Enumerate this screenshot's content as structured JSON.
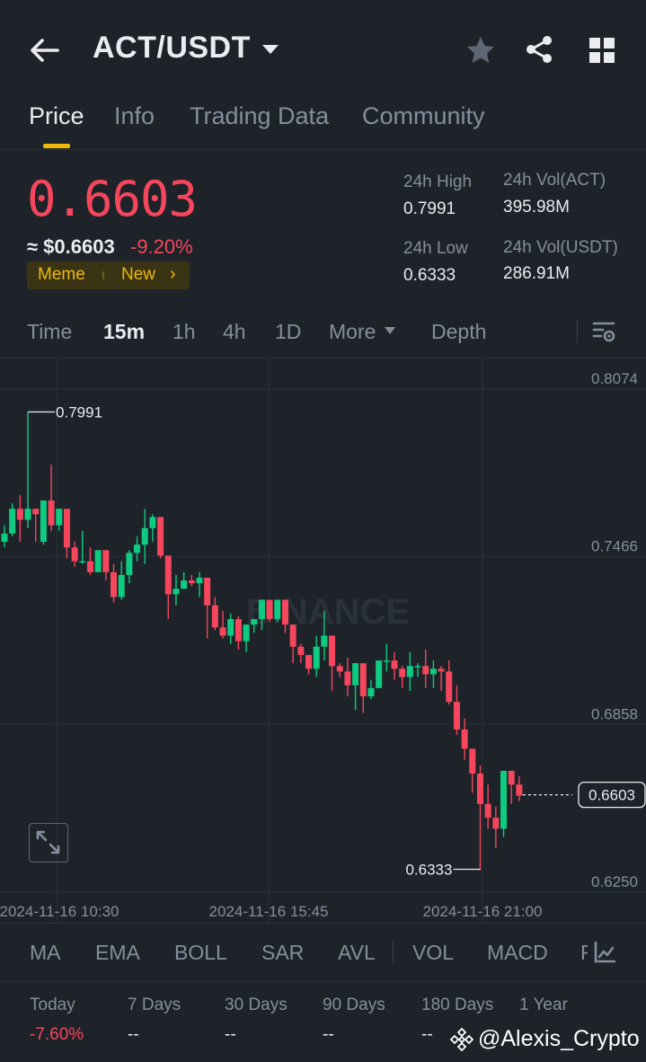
{
  "header": {
    "pair": "ACT/USDT"
  },
  "tabs": [
    {
      "label": "Price"
    },
    {
      "label": "Info"
    },
    {
      "label": "Trading Data"
    },
    {
      "label": "Community"
    }
  ],
  "price": {
    "last": "0.6603",
    "approx": "≈ $0.6603",
    "change": "-9.20%",
    "tags": [
      "Meme",
      "New"
    ]
  },
  "stats": {
    "high_label": "24h High",
    "high_value": "0.7991",
    "low_label": "24h Low",
    "low_value": "0.6333",
    "vol_base_label": "24h Vol(ACT)",
    "vol_base_value": "395.98M",
    "vol_quote_label": "24h Vol(USDT)",
    "vol_quote_value": "286.91M"
  },
  "intervals": [
    {
      "label": "Time"
    },
    {
      "label": "15m"
    },
    {
      "label": "1h"
    },
    {
      "label": "4h"
    },
    {
      "label": "1D"
    },
    {
      "label": "More"
    },
    {
      "label": "Depth"
    }
  ],
  "chart": {
    "y_ticks": [
      "0.8074",
      "0.7466",
      "0.6858",
      "0.6250"
    ],
    "x_ticks": [
      "2024-11-16 10:30",
      "2024-11-16 15:45",
      "2024-11-16 21:00"
    ],
    "high_marker": "0.7991",
    "low_marker": "0.6333",
    "last_price_tag": "0.6603",
    "watermark": "BINANCE"
  },
  "chart_data": {
    "type": "candlestick",
    "ylim": [
      0.625,
      0.8074
    ],
    "y_ticks": [
      0.8074,
      0.7466,
      0.6858,
      0.625
    ],
    "x_ticks": [
      "2024-11-16 10:30",
      "2024-11-16 15:45",
      "2024-11-16 21:00"
    ],
    "up_color": "#0ecb81",
    "down_color": "#f6465d",
    "candles": [
      [
        0.752,
        0.758,
        0.755,
        0.75
      ],
      [
        0.755,
        0.766,
        0.764,
        0.754
      ],
      [
        0.764,
        0.769,
        0.76,
        0.752
      ],
      [
        0.76,
        0.799,
        0.764,
        0.757
      ],
      [
        0.764,
        0.763,
        0.762,
        0.752
      ],
      [
        0.752,
        0.763,
        0.767,
        0.751
      ],
      [
        0.767,
        0.78,
        0.758,
        0.756
      ],
      [
        0.758,
        0.764,
        0.764,
        0.756
      ],
      [
        0.764,
        0.763,
        0.75,
        0.746
      ],
      [
        0.75,
        0.752,
        0.745,
        0.743
      ],
      [
        0.745,
        0.756,
        0.745,
        0.744
      ],
      [
        0.745,
        0.75,
        0.741,
        0.74
      ],
      [
        0.741,
        0.749,
        0.749,
        0.741
      ],
      [
        0.749,
        0.746,
        0.741,
        0.738
      ],
      [
        0.741,
        0.744,
        0.732,
        0.73
      ],
      [
        0.732,
        0.745,
        0.74,
        0.731
      ],
      [
        0.74,
        0.749,
        0.748,
        0.737
      ],
      [
        0.748,
        0.754,
        0.751,
        0.745
      ],
      [
        0.751,
        0.764,
        0.757,
        0.744
      ],
      [
        0.757,
        0.762,
        0.761,
        0.752
      ],
      [
        0.761,
        0.758,
        0.747,
        0.746
      ],
      [
        0.747,
        0.746,
        0.733,
        0.724
      ],
      [
        0.733,
        0.74,
        0.735,
        0.729
      ],
      [
        0.735,
        0.741,
        0.738,
        0.735
      ],
      [
        0.738,
        0.74,
        0.737,
        0.736
      ],
      [
        0.737,
        0.741,
        0.739,
        0.732
      ],
      [
        0.739,
        0.738,
        0.729,
        0.717
      ],
      [
        0.729,
        0.732,
        0.721,
        0.72
      ],
      [
        0.721,
        0.727,
        0.718,
        0.717
      ],
      [
        0.718,
        0.726,
        0.724,
        0.715
      ],
      [
        0.724,
        0.725,
        0.716,
        0.713
      ],
      [
        0.716,
        0.722,
        0.722,
        0.712
      ],
      [
        0.722,
        0.722,
        0.724,
        0.719
      ],
      [
        0.724,
        0.731,
        0.731,
        0.72
      ],
      [
        0.731,
        0.731,
        0.724,
        0.723
      ],
      [
        0.724,
        0.73,
        0.731,
        0.723
      ],
      [
        0.731,
        0.73,
        0.722,
        0.719
      ],
      [
        0.722,
        0.716,
        0.714,
        0.708
      ],
      [
        0.714,
        0.715,
        0.711,
        0.708
      ],
      [
        0.711,
        0.711,
        0.706,
        0.704
      ],
      [
        0.706,
        0.718,
        0.714,
        0.703
      ],
      [
        0.714,
        0.727,
        0.718,
        0.709
      ],
      [
        0.718,
        0.717,
        0.707,
        0.698
      ],
      [
        0.707,
        0.708,
        0.705,
        0.703
      ],
      [
        0.705,
        0.71,
        0.7,
        0.696
      ],
      [
        0.7,
        0.708,
        0.708,
        0.691
      ],
      [
        0.708,
        0.704,
        0.696,
        0.69
      ],
      [
        0.696,
        0.702,
        0.699,
        0.695
      ],
      [
        0.699,
        0.708,
        0.709,
        0.699
      ],
      [
        0.709,
        0.715,
        0.709,
        0.705
      ],
      [
        0.709,
        0.712,
        0.706,
        0.702
      ],
      [
        0.706,
        0.707,
        0.703,
        0.699
      ],
      [
        0.703,
        0.712,
        0.707,
        0.698
      ],
      [
        0.707,
        0.708,
        0.707,
        0.703
      ],
      [
        0.707,
        0.713,
        0.704,
        0.699
      ],
      [
        0.704,
        0.709,
        0.706,
        0.699
      ],
      [
        0.706,
        0.707,
        0.705,
        0.698
      ],
      [
        0.705,
        0.709,
        0.694,
        0.693
      ],
      [
        0.694,
        0.7,
        0.684,
        0.682
      ],
      [
        0.684,
        0.688,
        0.677,
        0.673
      ],
      [
        0.677,
        0.676,
        0.668,
        0.661
      ],
      [
        0.668,
        0.671,
        0.657,
        0.633
      ],
      [
        0.657,
        0.664,
        0.652,
        0.648
      ],
      [
        0.652,
        0.656,
        0.648,
        0.641
      ],
      [
        0.648,
        0.669,
        0.669,
        0.645
      ],
      [
        0.669,
        0.665,
        0.664,
        0.657
      ],
      [
        0.664,
        0.667,
        0.66,
        0.658
      ]
    ],
    "high_marker": 0.7991,
    "low_marker": 0.6333,
    "last_price": 0.6603
  },
  "indicators": [
    {
      "label": "MA"
    },
    {
      "label": "EMA"
    },
    {
      "label": "BOLL"
    },
    {
      "label": "SAR"
    },
    {
      "label": "AVL"
    },
    {
      "label": "VOL"
    },
    {
      "label": "MACD"
    },
    {
      "label": "R"
    }
  ],
  "performance": [
    {
      "label": "Today",
      "value": "-7.60%"
    },
    {
      "label": "7 Days",
      "value": "--"
    },
    {
      "label": "30 Days",
      "value": "--"
    },
    {
      "label": "90 Days",
      "value": "--"
    },
    {
      "label": "180 Days",
      "value": "--"
    },
    {
      "label": "1 Year",
      "value": ""
    }
  ],
  "watermark_credit": "@Alexis_Crypto"
}
